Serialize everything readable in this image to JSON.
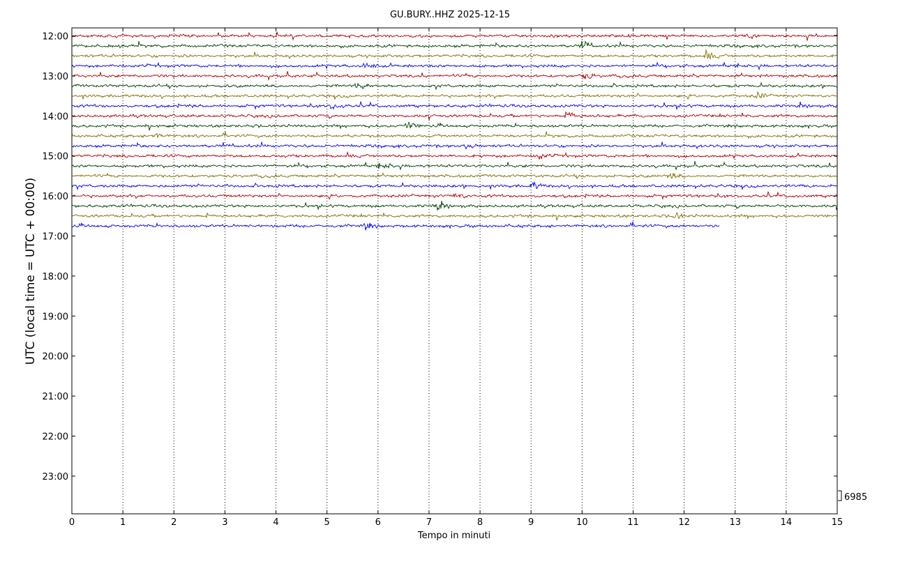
{
  "chart_data": {
    "type": "line",
    "title": "GU.BURY..HHZ 2025-12-15",
    "xlabel": "Tempo in minuti",
    "ylabel": "UTC (local time = UTC + 00:00)",
    "xlim": [
      0,
      15
    ],
    "x_ticks": [
      "0",
      "1",
      "2",
      "3",
      "4",
      "5",
      "6",
      "7",
      "8",
      "9",
      "10",
      "11",
      "12",
      "13",
      "14",
      "15"
    ],
    "y_ticks": [
      "12:00",
      "13:00",
      "14:00",
      "15:00",
      "16:00",
      "17:00",
      "18:00",
      "19:00",
      "20:00",
      "21:00",
      "22:00",
      "23:00"
    ],
    "grid": "vertical-dotted",
    "scale_label": "6985",
    "trace_colors": [
      "#b00000",
      "#004000",
      "#807000",
      "#0000ff"
    ],
    "traces": [
      {
        "start": "12:00",
        "minutes": 15,
        "color": "#b00000",
        "event_minute": 13.2
      },
      {
        "start": "12:15",
        "minutes": 15,
        "color": "#004000",
        "event_minute": 10.0
      },
      {
        "start": "12:30",
        "minutes": 15,
        "color": "#807000",
        "event_minute": 12.4
      },
      {
        "start": "12:45",
        "minutes": 15,
        "color": "#0000ff",
        "event_minute": 5.75
      },
      {
        "start": "13:00",
        "minutes": 15,
        "color": "#b00000",
        "event_minute": 10.0
      },
      {
        "start": "13:15",
        "minutes": 15,
        "color": "#004000",
        "event_minute": 5.6
      },
      {
        "start": "13:30",
        "minutes": 15,
        "color": "#807000",
        "event_minute": 13.4
      },
      {
        "start": "13:45",
        "minutes": 15,
        "color": "#0000ff",
        "event_minute": 5.1
      },
      {
        "start": "14:00",
        "minutes": 15,
        "color": "#b00000",
        "event_minute": 9.7
      },
      {
        "start": "14:15",
        "minutes": 15,
        "color": "#004000",
        "event_minute": 6.55
      },
      {
        "start": "14:30",
        "minutes": 15,
        "color": "#807000",
        "event_minute": 1.6
      },
      {
        "start": "14:45",
        "minutes": 15,
        "color": "#0000ff",
        "event_minute": 7.7
      },
      {
        "start": "15:00",
        "minutes": 15,
        "color": "#b00000",
        "event_minute": 9.1
      },
      {
        "start": "15:15",
        "minutes": 15,
        "color": "#004000",
        "event_minute": 6.05
      },
      {
        "start": "15:30",
        "minutes": 15,
        "color": "#807000",
        "event_minute": 11.7
      },
      {
        "start": "15:45",
        "minutes": 15,
        "color": "#0000ff",
        "event_minute": 9.0
      },
      {
        "start": "16:00",
        "minutes": 15,
        "color": "#b00000",
        "event_minute": 7.5
      },
      {
        "start": "16:15",
        "minutes": 15,
        "color": "#004000",
        "event_minute": 7.1
      },
      {
        "start": "16:30",
        "minutes": 15,
        "color": "#807000",
        "event_minute": 11.8
      },
      {
        "start": "16:45",
        "minutes": 12.7,
        "color": "#0000ff",
        "event_minute": 5.7
      }
    ]
  }
}
